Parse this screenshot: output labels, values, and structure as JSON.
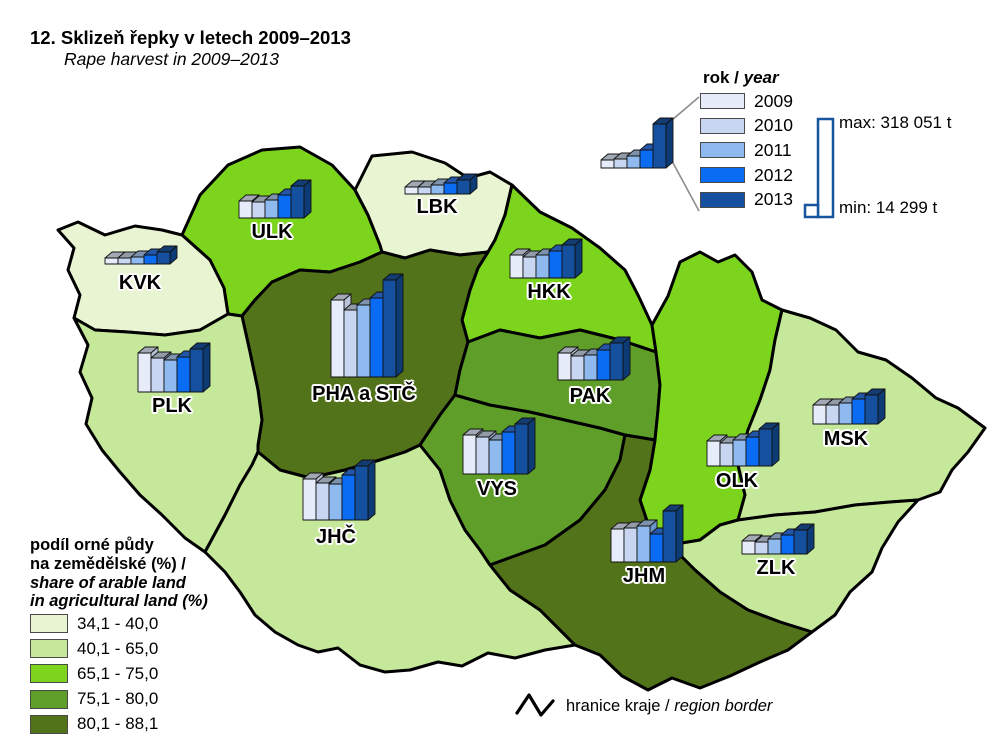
{
  "title": {
    "cs": "12. Sklizeň řepky v letech 2009–2013",
    "en": "Rape harvest in 2009–2013"
  },
  "year_legend": {
    "title_cs": "rok / ",
    "title_en": "year",
    "years": [
      {
        "label": "2009",
        "face": "#e6ecfa",
        "top": "#a2a9b4",
        "side": "#b9c3d8"
      },
      {
        "label": "2010",
        "face": "#c9d6f2",
        "top": "#929ca9",
        "side": "#9fb0d4"
      },
      {
        "label": "2011",
        "face": "#8fbaf0",
        "top": "#7d93ad",
        "side": "#6b94c9"
      },
      {
        "label": "2012",
        "face": "#0a6cf2",
        "top": "#2356a8",
        "side": "#084fba"
      },
      {
        "label": "2013",
        "face": "#14509e",
        "top": "#123c72",
        "side": "#0c3b76"
      }
    ],
    "sample_bars": [
      8,
      9,
      12,
      18,
      44
    ]
  },
  "minmax": {
    "max_label": "max: 318 051 t",
    "min_label": "min: 14 299 t",
    "outline_color": "#17559e"
  },
  "land_legend": {
    "title_lines": [
      "podíl orné půdy",
      "na zemědělské (%) /",
      "share of arable land",
      "in agricultural land (%)"
    ],
    "classes": [
      {
        "range": "34,1 - 40,0",
        "color": "#e9f5d2"
      },
      {
        "range": "40,1 - 65,0",
        "color": "#c6e89a"
      },
      {
        "range": "65,1 - 75,0",
        "color": "#7cd41d"
      },
      {
        "range": "75,1 - 80,0",
        "color": "#5f9e28"
      },
      {
        "range": "80,1 - 88,1",
        "color": "#53731a"
      }
    ]
  },
  "border_legend": {
    "cs": "hranice kraje / ",
    "en": "region border"
  },
  "regions": {
    "KVK": {
      "label": "KVK",
      "fill": "#e9f5d2"
    },
    "ULK": {
      "label": "ULK",
      "fill": "#7cd41d"
    },
    "LBK": {
      "label": "LBK",
      "fill": "#e9f5d2"
    },
    "HKK": {
      "label": "HKK",
      "fill": "#7cd41d"
    },
    "PLK": {
      "label": "PLK",
      "fill": "#c6e89a"
    },
    "PHA_STC": {
      "label": "PHA a STČ",
      "fill": "#53731a"
    },
    "PAK": {
      "label": "PAK",
      "fill": "#5f9e28"
    },
    "VYS": {
      "label": "VYS",
      "fill": "#5f9e28"
    },
    "JHC": {
      "label": "JHČ",
      "fill": "#c6e89a"
    },
    "JHM": {
      "label": "JHM",
      "fill": "#53731a"
    },
    "OLK": {
      "label": "OLK",
      "fill": "#7cd41d"
    },
    "ZLK": {
      "label": "ZLK",
      "fill": "#c6e89a"
    },
    "MSK": {
      "label": "MSK",
      "fill": "#c6e89a"
    }
  },
  "chart_data": {
    "type": "bar",
    "title": "12. Sklizeň řepky v letech 2009–2013 / Rape harvest in 2009–2013",
    "categories": [
      "2009",
      "2010",
      "2011",
      "2012",
      "2013"
    ],
    "value_unit": "bar height px, proportional to harvest in tonnes",
    "annotations": {
      "max": "max: 318 051 t",
      "min": "min: 14 299 t"
    },
    "legend_position": "top-right",
    "series": [
      {
        "code": "KVK",
        "name": "KVK",
        "values": [
          6,
          6,
          7,
          9,
          12
        ]
      },
      {
        "code": "ULK",
        "name": "ULK",
        "values": [
          17,
          16,
          18,
          23,
          32
        ]
      },
      {
        "code": "LBK",
        "name": "LBK",
        "values": [
          7,
          7,
          9,
          11,
          14
        ]
      },
      {
        "code": "HKK",
        "name": "HKK",
        "values": [
          23,
          21,
          23,
          27,
          33
        ]
      },
      {
        "code": "PLK",
        "name": "PLK",
        "values": [
          39,
          34,
          32,
          35,
          43
        ]
      },
      {
        "code": "PHA_STC",
        "name": "PHA a STČ",
        "values": [
          77,
          67,
          72,
          79,
          97
        ]
      },
      {
        "code": "PAK",
        "name": "PAK",
        "values": [
          27,
          24,
          25,
          30,
          37
        ]
      },
      {
        "code": "VYS",
        "name": "VYS",
        "values": [
          39,
          37,
          34,
          42,
          50
        ]
      },
      {
        "code": "JHC",
        "name": "JHČ",
        "values": [
          41,
          37,
          36,
          45,
          54
        ]
      },
      {
        "code": "JHM",
        "name": "JHM",
        "values": [
          33,
          34,
          36,
          28,
          51
        ]
      },
      {
        "code": "OLK",
        "name": "OLK",
        "values": [
          25,
          23,
          26,
          29,
          37
        ]
      },
      {
        "code": "ZLK",
        "name": "ZLK",
        "values": [
          13,
          12,
          15,
          19,
          24
        ]
      },
      {
        "code": "MSK",
        "name": "MSK",
        "values": [
          19,
          19,
          21,
          25,
          29
        ]
      }
    ],
    "choropleth": {
      "measure": "podíl orné půdy na zemědělské (%) / share of arable land in agricultural land (%)",
      "classes": [
        {
          "range": "34,1 - 40,0",
          "color": "#e9f5d2",
          "regions": [
            "KVK",
            "LBK"
          ]
        },
        {
          "range": "40,1 - 65,0",
          "color": "#c6e89a",
          "regions": [
            "PLK",
            "JHČ",
            "MSK",
            "ZLK"
          ]
        },
        {
          "range": "65,1 - 75,0",
          "color": "#7cd41d",
          "regions": [
            "ULK",
            "HKK",
            "OLK"
          ]
        },
        {
          "range": "75,1 - 80,0",
          "color": "#5f9e28",
          "regions": [
            "PAK",
            "VYS"
          ]
        },
        {
          "range": "80,1 - 88,1",
          "color": "#53731a",
          "regions": [
            "PHA a STČ",
            "JHM"
          ]
        }
      ]
    }
  }
}
